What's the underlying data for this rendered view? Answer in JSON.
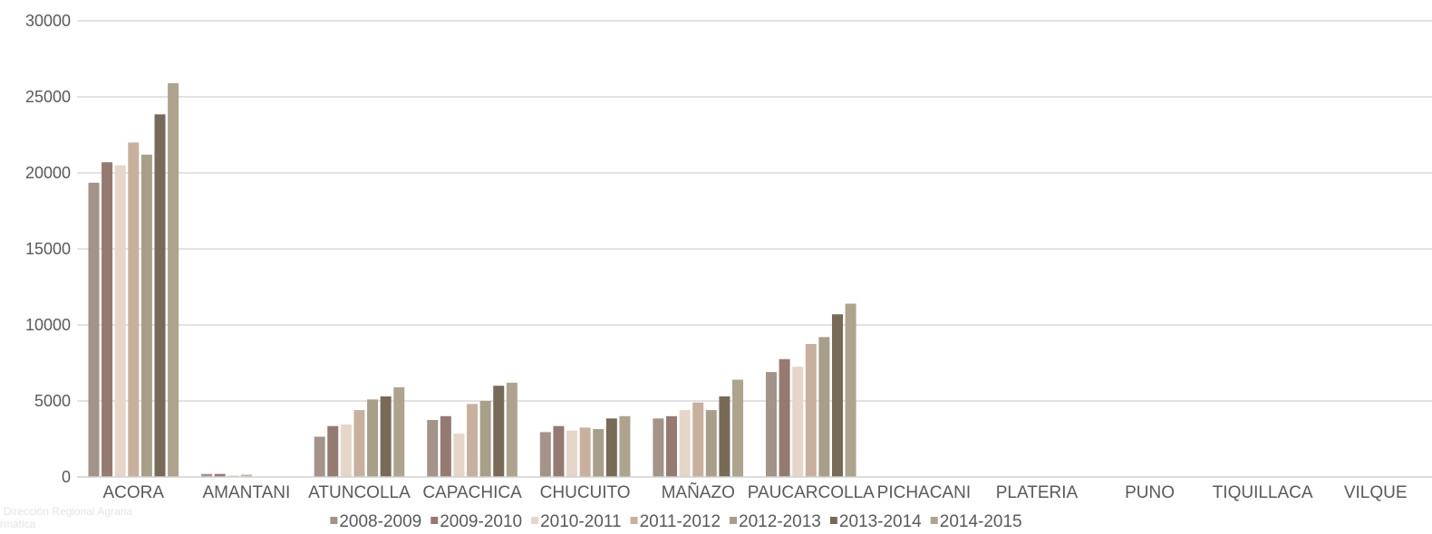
{
  "footnote": {
    "line1": "Dirección Regional Agraria",
    "line2": "rmática"
  },
  "chart_data": {
    "type": "bar",
    "title": "",
    "xlabel": "",
    "ylabel": "",
    "ylim": [
      0,
      30000
    ],
    "yticks": [
      "0",
      "5000",
      "10000",
      "15000",
      "20000",
      "25000",
      "30000"
    ],
    "grid": true,
    "legend_position": "bottom",
    "categories": [
      "ACORA",
      "AMANTANI",
      "ATUNCOLLA",
      "CAPACHICA",
      "CHUCUITO",
      "MAÑAZO",
      "PAUCARCOLLA",
      "PICHACANI",
      "PLATERIA",
      "PUNO",
      "TIQUILLACA",
      "VILQUE"
    ],
    "series": [
      {
        "name": "2008-2009",
        "color": "#a39388",
        "values": [
          19350,
          200,
          2650,
          3750,
          2950,
          3850,
          6900,
          0,
          0,
          0,
          0,
          0
        ]
      },
      {
        "name": "2009-2010",
        "color": "#957a72",
        "values": [
          20700,
          200,
          3350,
          4000,
          3350,
          4000,
          7750,
          0,
          0,
          0,
          0,
          0
        ]
      },
      {
        "name": "2010-2011",
        "color": "#e6d5c9",
        "values": [
          20500,
          100,
          3450,
          2850,
          3050,
          4400,
          7250,
          0,
          0,
          0,
          0,
          0
        ]
      },
      {
        "name": "2011-2012",
        "color": "#c8b09e",
        "values": [
          22000,
          150,
          4400,
          4800,
          3250,
          4900,
          8750,
          0,
          0,
          0,
          0,
          0
        ]
      },
      {
        "name": "2012-2013",
        "color": "#a89f8a",
        "values": [
          21200,
          0,
          5100,
          5000,
          3150,
          4400,
          9200,
          0,
          0,
          0,
          0,
          0
        ]
      },
      {
        "name": "2013-2014",
        "color": "#786a58",
        "values": [
          23850,
          0,
          5300,
          6000,
          3850,
          5300,
          10700,
          0,
          0,
          0,
          0,
          0
        ]
      },
      {
        "name": "2014-2015",
        "color": "#ada38e",
        "values": [
          25900,
          0,
          5900,
          6200,
          4000,
          6400,
          11400,
          0,
          0,
          0,
          0,
          0
        ]
      }
    ]
  }
}
